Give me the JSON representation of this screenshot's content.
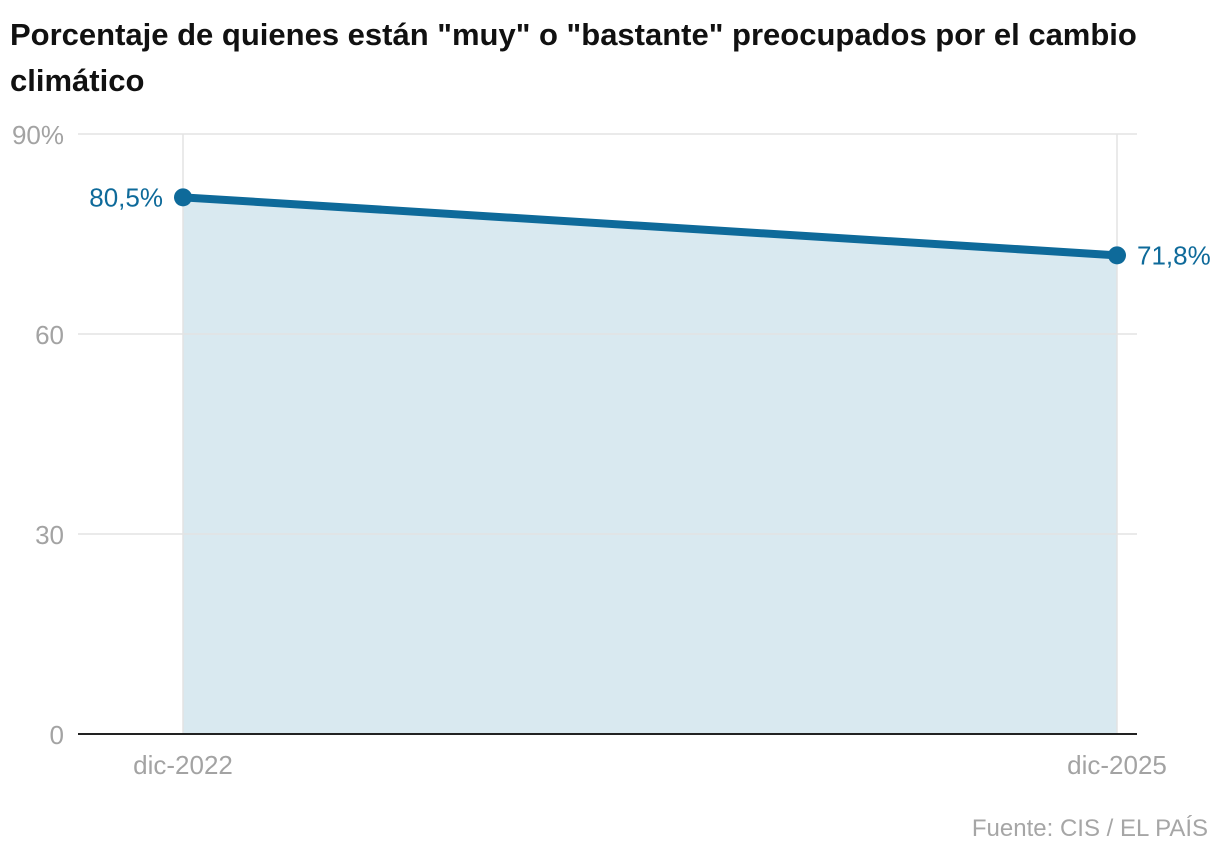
{
  "source": "Fuente: CIS / EL PAÍS",
  "colors": {
    "line": "#0e6a9a",
    "area": "#d9e9f0",
    "grid": "#e3e3e3",
    "axis": "#222222"
  },
  "chart_data": {
    "type": "area",
    "title": "Porcentaje de quienes están \"muy\" o \"bastante\" preocupados por el cambio climático",
    "x": [
      "dic-2022",
      "dic-2025"
    ],
    "series": [
      {
        "values": [
          80.5,
          71.8
        ],
        "data_labels": [
          "80,5%",
          "71,8%"
        ]
      }
    ],
    "y_ticks": [
      0,
      30,
      60,
      90
    ],
    "y_tick_labels": [
      "0",
      "30",
      "60",
      "90%"
    ],
    "ylim": [
      0,
      90
    ],
    "grid": true,
    "legend": "none"
  }
}
